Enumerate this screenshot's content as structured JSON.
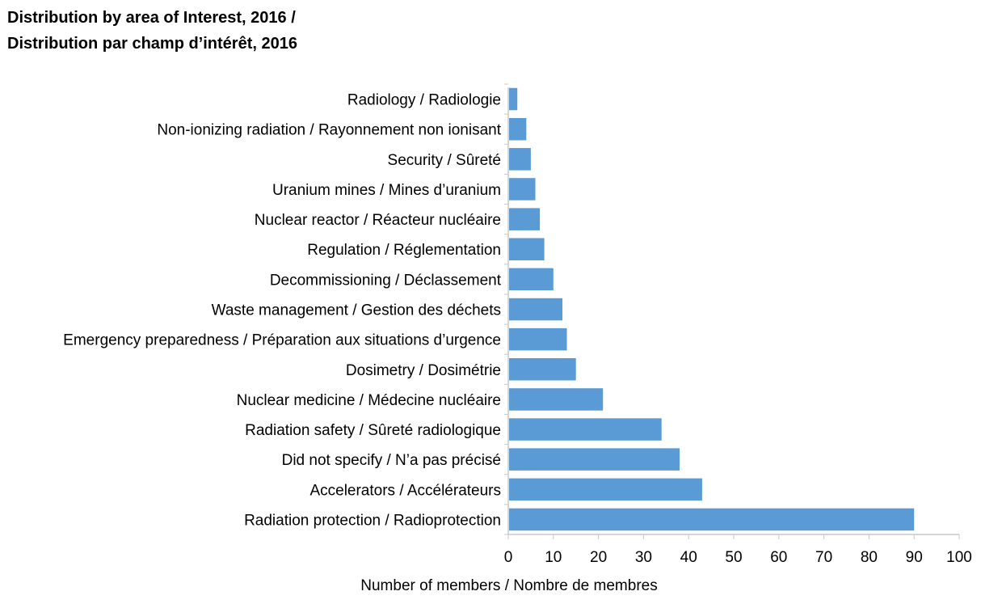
{
  "chart_data": {
    "type": "bar",
    "orientation": "horizontal",
    "title_line1": "Distribution by area of Interest, 2016 /",
    "title_line2": "Distribution par champ d’intérêt, 2016",
    "xlabel": "Number of members / Nombre de membres",
    "ylabel": "",
    "xlim": [
      0,
      100
    ],
    "xticks": [
      "0",
      "10",
      "20",
      "30",
      "40",
      "50",
      "60",
      "70",
      "80",
      "90",
      "100"
    ],
    "grid": false,
    "bar_color": "#5B9BD5",
    "categories": [
      "Radiology / Radiologie",
      "Non-ionizing radiation / Rayonnement non ionisant",
      "Security / Sûreté",
      "Uranium mines / Mines d’uranium",
      "Nuclear reactor / Réacteur nucléaire",
      "Regulation / Réglementation",
      "Decommissioning / Déclassement",
      "Waste management / Gestion des déchets",
      "Emergency preparedness / Préparation aux situations d’urgence",
      "Dosimetry / Dosimétrie",
      "Nuclear medicine / Médecine nucléaire",
      "Radiation safety / Sûreté radiologique",
      "Did not specify / N’a pas précisé",
      "Accelerators / Accélérateurs",
      "Radiation protection / Radioprotection"
    ],
    "values": [
      2,
      4,
      5,
      6,
      7,
      8,
      10,
      12,
      13,
      15,
      21,
      34,
      38,
      43,
      90
    ]
  }
}
